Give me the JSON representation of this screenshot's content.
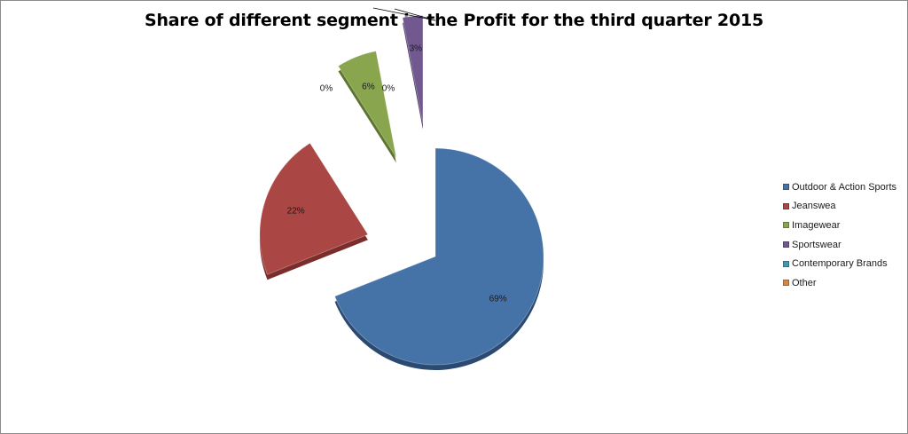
{
  "chart_data": {
    "type": "pie",
    "title": "Share of different segment in the Profit for the third quarter 2015",
    "legend_position": "right",
    "exploded": true,
    "categories": [
      "Outdoor & Action Sports",
      "Jeanswea",
      "Imagewear",
      "Sportswear",
      "Contemporary Brands",
      "Other"
    ],
    "values": [
      69,
      22,
      6,
      3,
      0,
      0
    ],
    "labels": [
      "69%",
      "22%",
      "6%",
      "3%",
      "0%",
      "0%"
    ],
    "colors": [
      "#4572A7",
      "#AA4643",
      "#89A54E",
      "#71588F",
      "#4198AF",
      "#DB843D"
    ],
    "side_colors": [
      "#2a4a72",
      "#7a2d2b",
      "#5c7530",
      "#4b3a62",
      "#2b6b7d",
      "#a65e24"
    ]
  }
}
